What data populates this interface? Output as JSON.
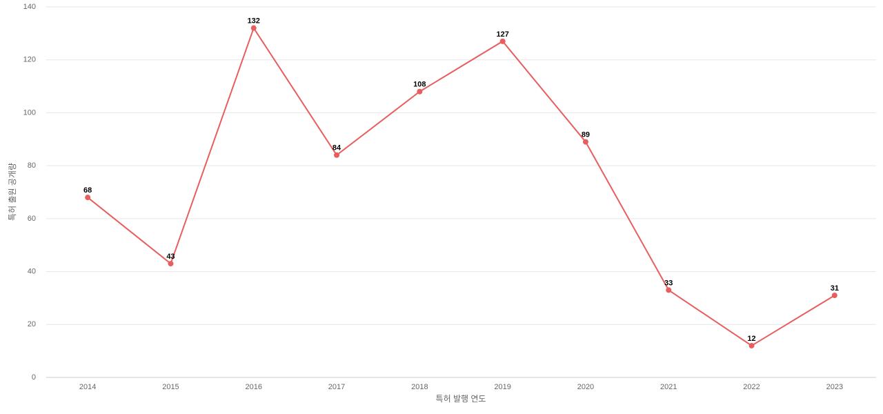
{
  "chart_data": {
    "type": "line",
    "x_label": "특허 발행 연도",
    "y_label": "특허 출원 공개량",
    "categories": [
      "2014",
      "2015",
      "2016",
      "2017",
      "2018",
      "2019",
      "2020",
      "2021",
      "2022",
      "2023"
    ],
    "values": [
      68,
      43,
      132,
      84,
      108,
      127,
      89,
      33,
      12,
      31
    ],
    "color": "#e85d5d",
    "ylim": [
      0,
      140
    ],
    "yticks": [
      0,
      20,
      40,
      60,
      80,
      100,
      120,
      140
    ],
    "grid": true
  }
}
